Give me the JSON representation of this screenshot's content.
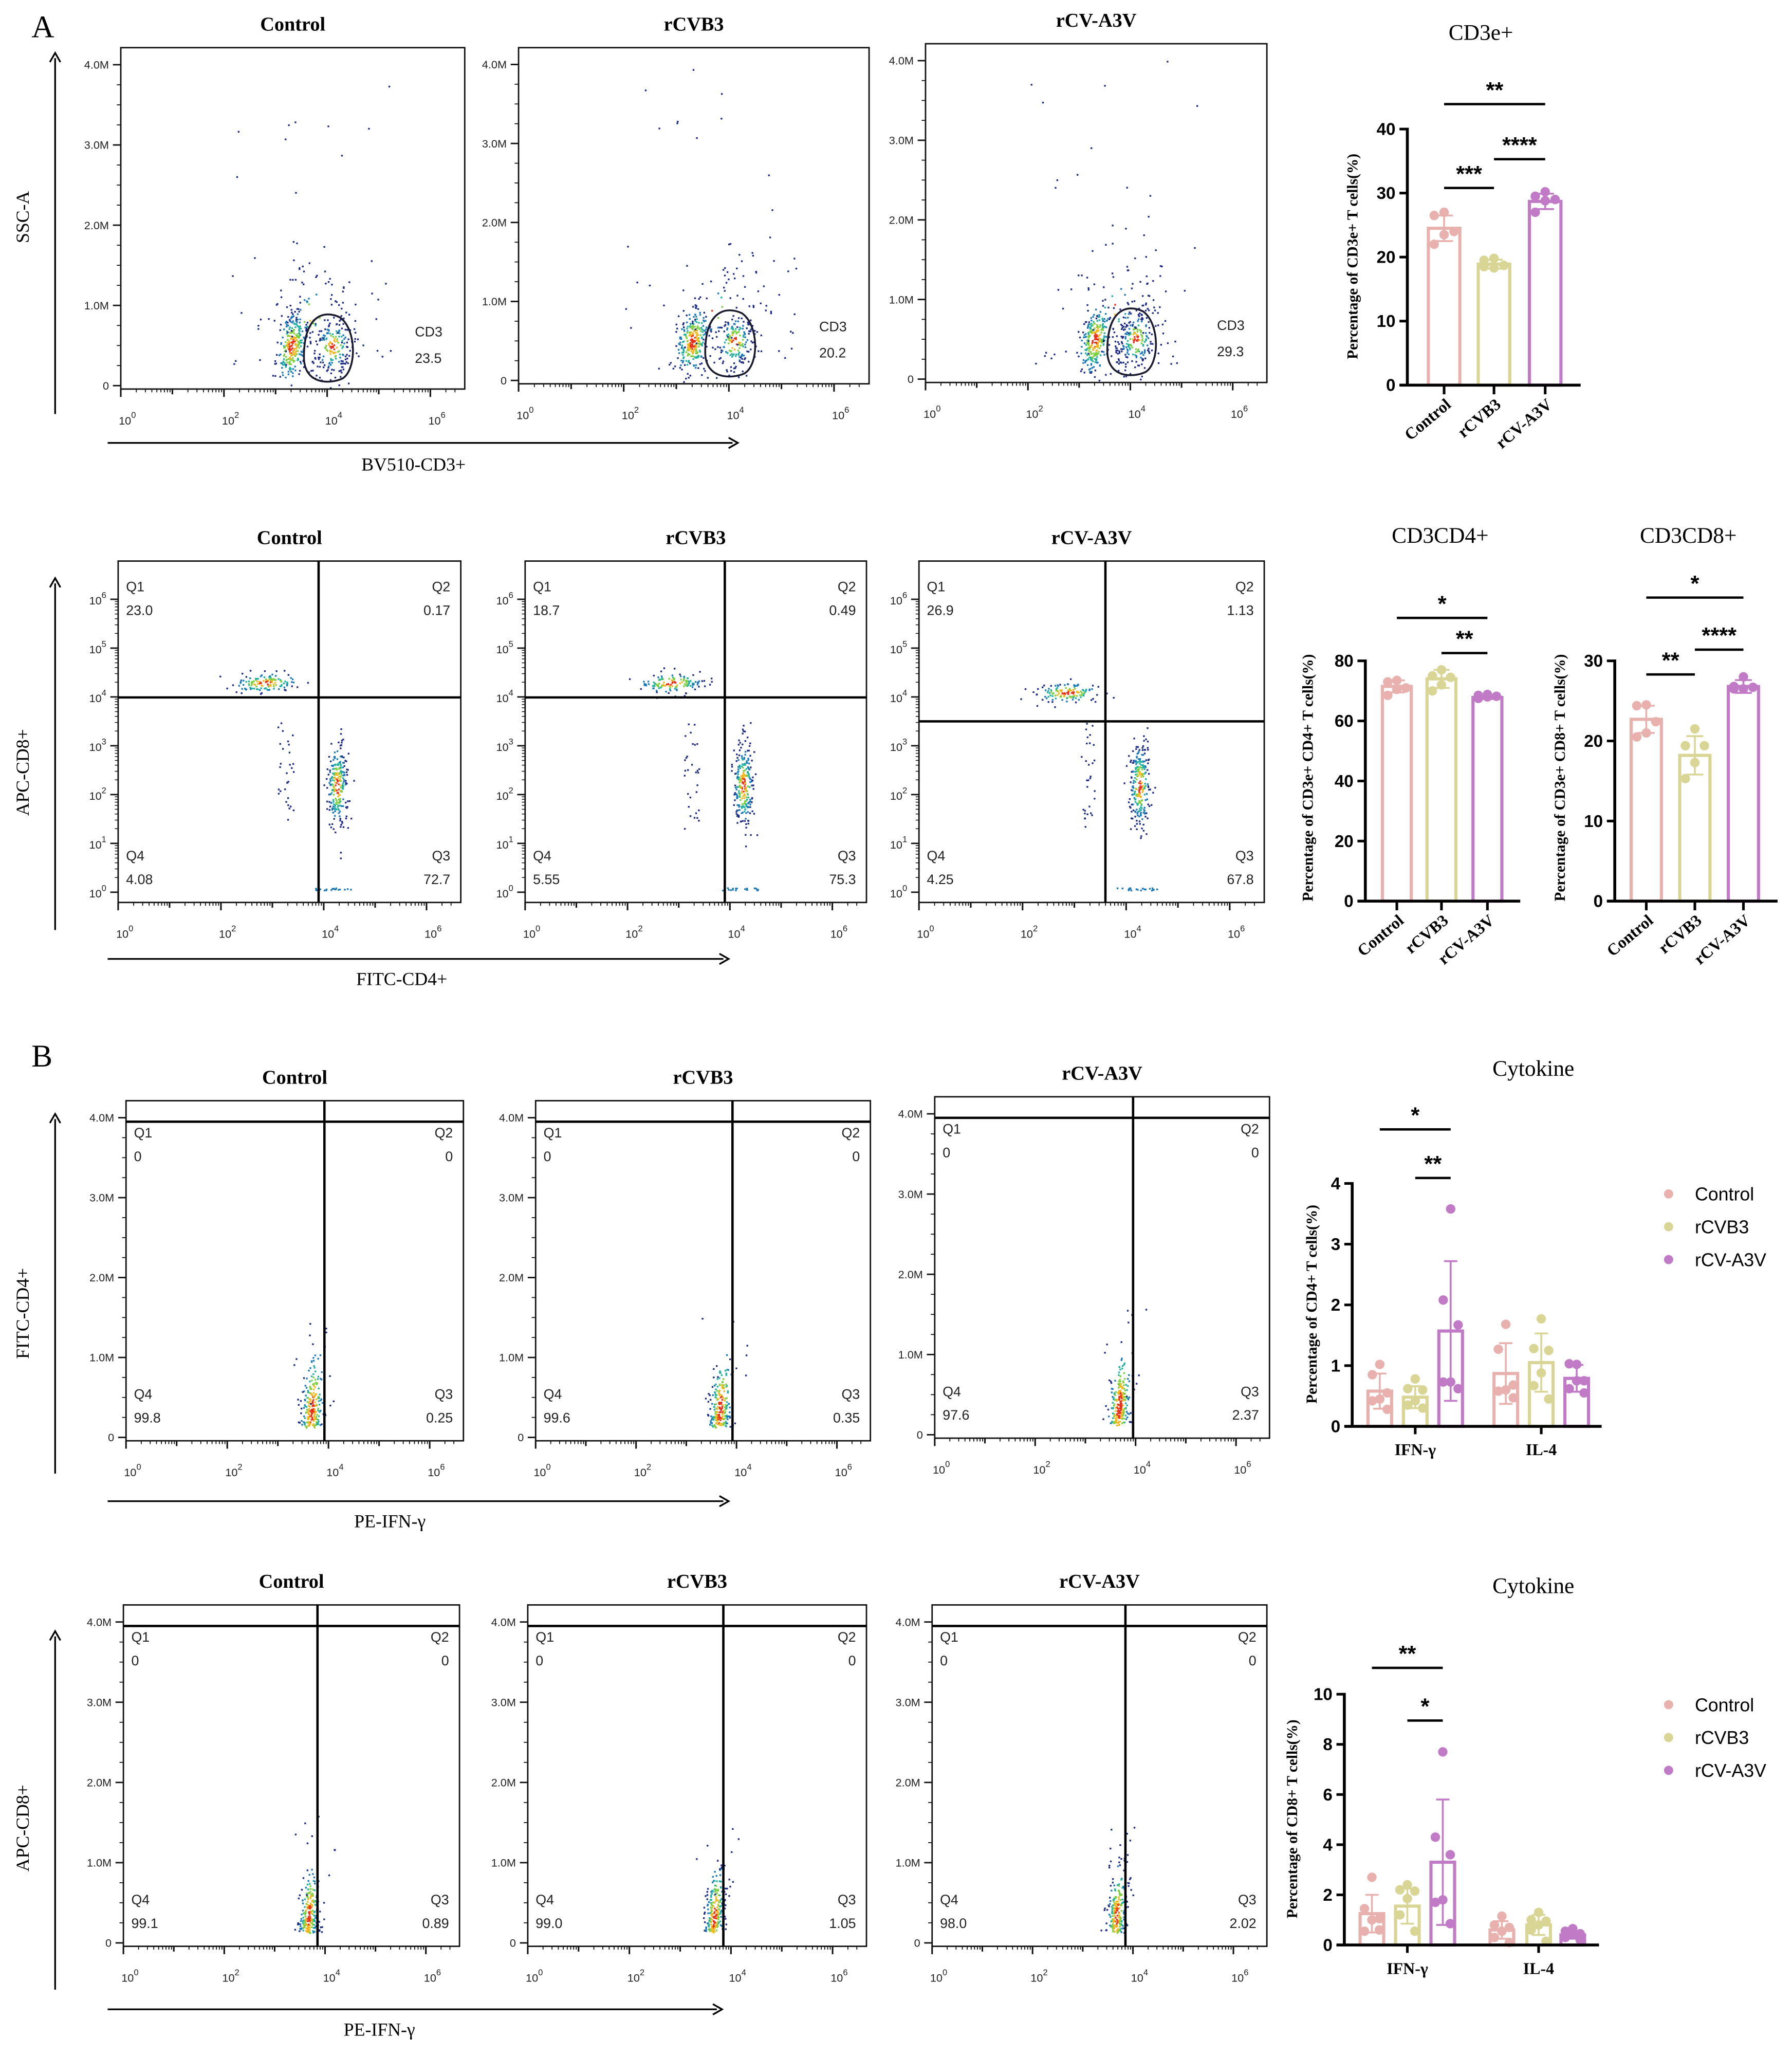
{
  "panel_labels": {
    "a": "A",
    "b": "B"
  },
  "flow_rows": [
    {
      "y_axis_label": "SSC-A",
      "x_axis_label": "BV510-CD3+",
      "y_scale": "linear",
      "y_ticks": [
        "0",
        "1.0M",
        "2.0M",
        "3.0M",
        "4.0M"
      ],
      "x_tick_base": "10",
      "x_tick_exponents": [
        "0",
        "2",
        "4",
        "6"
      ],
      "plots": [
        {
          "title": "Control",
          "gate_label": "CD3",
          "gate_value": "23.5"
        },
        {
          "title": "rCVB3",
          "gate_label": "CD3",
          "gate_value": "20.2"
        },
        {
          "title": "rCV-A3V",
          "gate_label": "CD3",
          "gate_value": "29.3"
        }
      ]
    },
    {
      "y_axis_label": "APC-CD8+",
      "x_axis_label": "FITC-CD4+",
      "y_scale": "log",
      "y_tick_base": "10",
      "y_tick_exponents": [
        "0",
        "1",
        "2",
        "3",
        "4",
        "5",
        "6"
      ],
      "x_tick_base": "10",
      "x_tick_exponents": [
        "0",
        "2",
        "4",
        "6"
      ],
      "plots": [
        {
          "title": "Control",
          "quadrants": [
            {
              "label": "Q1",
              "value": "23.0"
            },
            {
              "label": "Q2",
              "value": "0.17"
            },
            {
              "label": "Q3",
              "value": "72.7"
            },
            {
              "label": "Q4",
              "value": "4.08"
            }
          ]
        },
        {
          "title": "rCVB3",
          "quadrants": [
            {
              "label": "Q1",
              "value": "18.7"
            },
            {
              "label": "Q2",
              "value": "0.49"
            },
            {
              "label": "Q3",
              "value": "75.3"
            },
            {
              "label": "Q4",
              "value": "5.55"
            }
          ]
        },
        {
          "title": "rCV-A3V",
          "quadrants": [
            {
              "label": "Q1",
              "value": "26.9"
            },
            {
              "label": "Q2",
              "value": "1.13"
            },
            {
              "label": "Q3",
              "value": "67.8"
            },
            {
              "label": "Q4",
              "value": "4.25"
            }
          ]
        }
      ]
    },
    {
      "y_axis_label": "FITC-CD4+",
      "x_axis_label": "PE-IFN-γ",
      "y_scale": "linear",
      "y_ticks": [
        "0",
        "1.0M",
        "2.0M",
        "3.0M",
        "4.0M"
      ],
      "x_tick_base": "10",
      "x_tick_exponents": [
        "0",
        "2",
        "4",
        "6"
      ],
      "plots": [
        {
          "title": "Control",
          "quadrants": [
            {
              "label": "Q1",
              "value": "0"
            },
            {
              "label": "Q2",
              "value": "0"
            },
            {
              "label": "Q3",
              "value": "0.25"
            },
            {
              "label": "Q4",
              "value": "99.8"
            }
          ]
        },
        {
          "title": "rCVB3",
          "quadrants": [
            {
              "label": "Q1",
              "value": "0"
            },
            {
              "label": "Q2",
              "value": "0"
            },
            {
              "label": "Q3",
              "value": "0.35"
            },
            {
              "label": "Q4",
              "value": "99.6"
            }
          ]
        },
        {
          "title": "rCV-A3V",
          "quadrants": [
            {
              "label": "Q1",
              "value": "0"
            },
            {
              "label": "Q2",
              "value": "0"
            },
            {
              "label": "Q3",
              "value": "2.37"
            },
            {
              "label": "Q4",
              "value": "97.6"
            }
          ]
        }
      ]
    },
    {
      "y_axis_label": "APC-CD8+",
      "x_axis_label": "PE-IFN-γ",
      "y_scale": "linear",
      "y_ticks": [
        "0",
        "1.0M",
        "2.0M",
        "3.0M",
        "4.0M"
      ],
      "x_tick_base": "10",
      "x_tick_exponents": [
        "0",
        "2",
        "4",
        "6"
      ],
      "plots": [
        {
          "title": "Control",
          "quadrants": [
            {
              "label": "Q1",
              "value": "0"
            },
            {
              "label": "Q2",
              "value": "0"
            },
            {
              "label": "Q3",
              "value": "0.89"
            },
            {
              "label": "Q4",
              "value": "99.1"
            }
          ]
        },
        {
          "title": "rCVB3",
          "quadrants": [
            {
              "label": "Q1",
              "value": "0"
            },
            {
              "label": "Q2",
              "value": "0"
            },
            {
              "label": "Q3",
              "value": "1.05"
            },
            {
              "label": "Q4",
              "value": "99.0"
            }
          ]
        },
        {
          "title": "rCV-A3V",
          "quadrants": [
            {
              "label": "Q1",
              "value": "0"
            },
            {
              "label": "Q2",
              "value": "0"
            },
            {
              "label": "Q3",
              "value": "2.02"
            },
            {
              "label": "Q4",
              "value": "98.0"
            }
          ]
        }
      ]
    }
  ],
  "colors": {
    "Control": "#e8b1ae",
    "rCVB3": "#d9d595",
    "rCV-A3V": "#c07ac6"
  },
  "chart_data": [
    {
      "id": "cd3e",
      "type": "bar",
      "title": "CD3e+",
      "ylabel": "Percentage of CD3e+ T cells(%)",
      "xlabel": "",
      "ylim": [
        0,
        40
      ],
      "yticks": [
        "0",
        "10",
        "20",
        "30",
        "40"
      ],
      "categories": [
        "Control",
        "rCVB3",
        "rCV-A3V"
      ],
      "means": [
        24.5,
        18.9,
        28.7
      ],
      "sd": [
        2.0,
        0.7,
        1.2
      ],
      "points": [
        [
          27.0,
          26.5,
          24.0,
          23.5,
          22.0
        ],
        [
          19.8,
          19.5,
          18.7,
          18.3,
          18.5
        ],
        [
          30.2,
          29.5,
          29.0,
          28.8,
          27.0
        ]
      ],
      "significance": [
        {
          "from": "Control",
          "to": "rCVB3",
          "label": "***"
        },
        {
          "from": "rCVB3",
          "to": "rCV-A3V",
          "label": "****"
        },
        {
          "from": "Control",
          "to": "rCV-A3V",
          "label": "**"
        }
      ]
    },
    {
      "id": "cd3cd4",
      "type": "bar",
      "title": "CD3CD4+",
      "ylabel": "Percentage of CD3e+ CD4+ T cells(%)",
      "xlabel": "",
      "ylim": [
        0,
        80
      ],
      "yticks": [
        "0",
        "20",
        "40",
        "60",
        "80"
      ],
      "categories": [
        "Control",
        "rCVB3",
        "rCV-A3V"
      ],
      "means": [
        71.5,
        74.0,
        67.8
      ],
      "sd": [
        2.0,
        3.0,
        0.5
      ],
      "points": [
        [
          73.5,
          73.0,
          71.0,
          70.5,
          68.5
        ],
        [
          77.0,
          75.0,
          74.5,
          72.0,
          70.0
        ],
        [
          68.8,
          68.5,
          68.2,
          68.0,
          67.5
        ]
      ],
      "significance": [
        {
          "from": "rCVB3",
          "to": "rCV-A3V",
          "label": "**"
        },
        {
          "from": "Control",
          "to": "rCV-A3V",
          "label": "*"
        }
      ]
    },
    {
      "id": "cd3cd8",
      "type": "bar",
      "title": "CD3CD8+",
      "ylabel": "Percentage of CD3e+ CD8+ T cells(%)",
      "xlabel": "",
      "ylim": [
        0,
        30
      ],
      "yticks": [
        "0",
        "10",
        "20",
        "30"
      ],
      "categories": [
        "Control",
        "rCVB3",
        "rCV-A3V"
      ],
      "means": [
        22.7,
        18.2,
        26.8
      ],
      "sd": [
        1.7,
        2.4,
        0.8
      ],
      "points": [
        [
          24.5,
          24.4,
          22.4,
          21.0,
          20.5
        ],
        [
          21.5,
          19.4,
          19.4,
          17.3,
          15.3
        ],
        [
          28.0,
          26.8,
          26.7,
          26.5,
          26.5
        ]
      ],
      "significance": [
        {
          "from": "Control",
          "to": "rCVB3",
          "label": "**"
        },
        {
          "from": "rCVB3",
          "to": "rCV-A3V",
          "label": "****"
        },
        {
          "from": "Control",
          "to": "rCV-A3V",
          "label": "*"
        }
      ]
    },
    {
      "id": "cytokine_cd4",
      "type": "bar",
      "title": "Cytokine",
      "ylabel": "Percentage of CD4+ T cells(%)",
      "xlabel": "",
      "ylim": [
        0,
        4
      ],
      "yticks": [
        "0",
        "1",
        "2",
        "3",
        "4"
      ],
      "groups": [
        "IFN-γ",
        "IL-4"
      ],
      "legend": "right",
      "series": [
        {
          "name": "Control",
          "means": [
            0.58,
            0.87
          ],
          "sd": [
            0.29,
            0.5
          ],
          "points": [
            [
              1.02,
              0.85,
              0.55,
              0.45,
              0.42,
              0.28
            ],
            [
              1.68,
              1.27,
              0.68,
              0.6,
              0.58,
              0.47
            ]
          ]
        },
        {
          "name": "rCVB3",
          "means": [
            0.48,
            1.05
          ],
          "sd": [
            0.18,
            0.48
          ],
          "points": [
            [
              0.78,
              0.62,
              0.6,
              0.42,
              0.35,
              0.3
            ],
            [
              1.77,
              1.28,
              1.25,
              0.88,
              0.67,
              0.45
            ]
          ]
        },
        {
          "name": "rCV-A3V",
          "means": [
            1.57,
            0.79
          ],
          "sd": [
            1.15,
            0.22
          ],
          "points": [
            [
              3.58,
              2.08,
              1.67,
              0.73,
              0.73,
              0.62
            ],
            [
              1.02,
              1.03,
              0.75,
              0.75,
              0.62,
              0.55
            ]
          ]
        }
      ],
      "significance": [
        {
          "group": "IFN-γ",
          "from": "rCVB3",
          "to": "rCV-A3V",
          "label": "**"
        },
        {
          "group": "IFN-γ",
          "from": "Control",
          "to": "rCV-A3V",
          "label": "*"
        }
      ]
    },
    {
      "id": "cytokine_cd8",
      "type": "bar",
      "title": "Cytokine",
      "ylabel": "Percentage of CD8+ T cells(%)",
      "xlabel": "",
      "ylim": [
        0,
        10
      ],
      "yticks": [
        "0",
        "2",
        "4",
        "6",
        "8",
        "10"
      ],
      "groups": [
        "IFN-γ",
        "IL-4"
      ],
      "legend": "right",
      "series": [
        {
          "name": "Control",
          "means": [
            1.25,
            0.6
          ],
          "sd": [
            0.75,
            0.35
          ],
          "points": [
            [
              2.7,
              1.45,
              1.05,
              1.0,
              0.55,
              0.6
            ],
            [
              1.15,
              0.8,
              0.7,
              0.55,
              0.3,
              0.1
            ]
          ]
        },
        {
          "name": "rCVB3",
          "means": [
            1.55,
            0.8
          ],
          "sd": [
            0.7,
            0.4
          ],
          "points": [
            [
              2.4,
              2.2,
              2.15,
              1.85,
              1.2,
              0.55
            ],
            [
              1.3,
              1.0,
              0.95,
              0.8,
              0.6,
              0.15
            ]
          ]
        },
        {
          "name": "rCV-A3V",
          "means": [
            3.3,
            0.4
          ],
          "sd": [
            2.5,
            0.15
          ],
          "points": [
            [
              7.7,
              4.3,
              3.6,
              1.8,
              1.7,
              0.85
            ],
            [
              0.65,
              0.55,
              0.45,
              0.4,
              0.3,
              0.2
            ]
          ]
        }
      ],
      "significance": [
        {
          "group": "IFN-γ",
          "from": "rCVB3",
          "to": "rCV-A3V",
          "label": "*"
        },
        {
          "group": "IFN-γ",
          "from": "Control",
          "to": "rCV-A3V",
          "label": "**"
        }
      ]
    }
  ]
}
